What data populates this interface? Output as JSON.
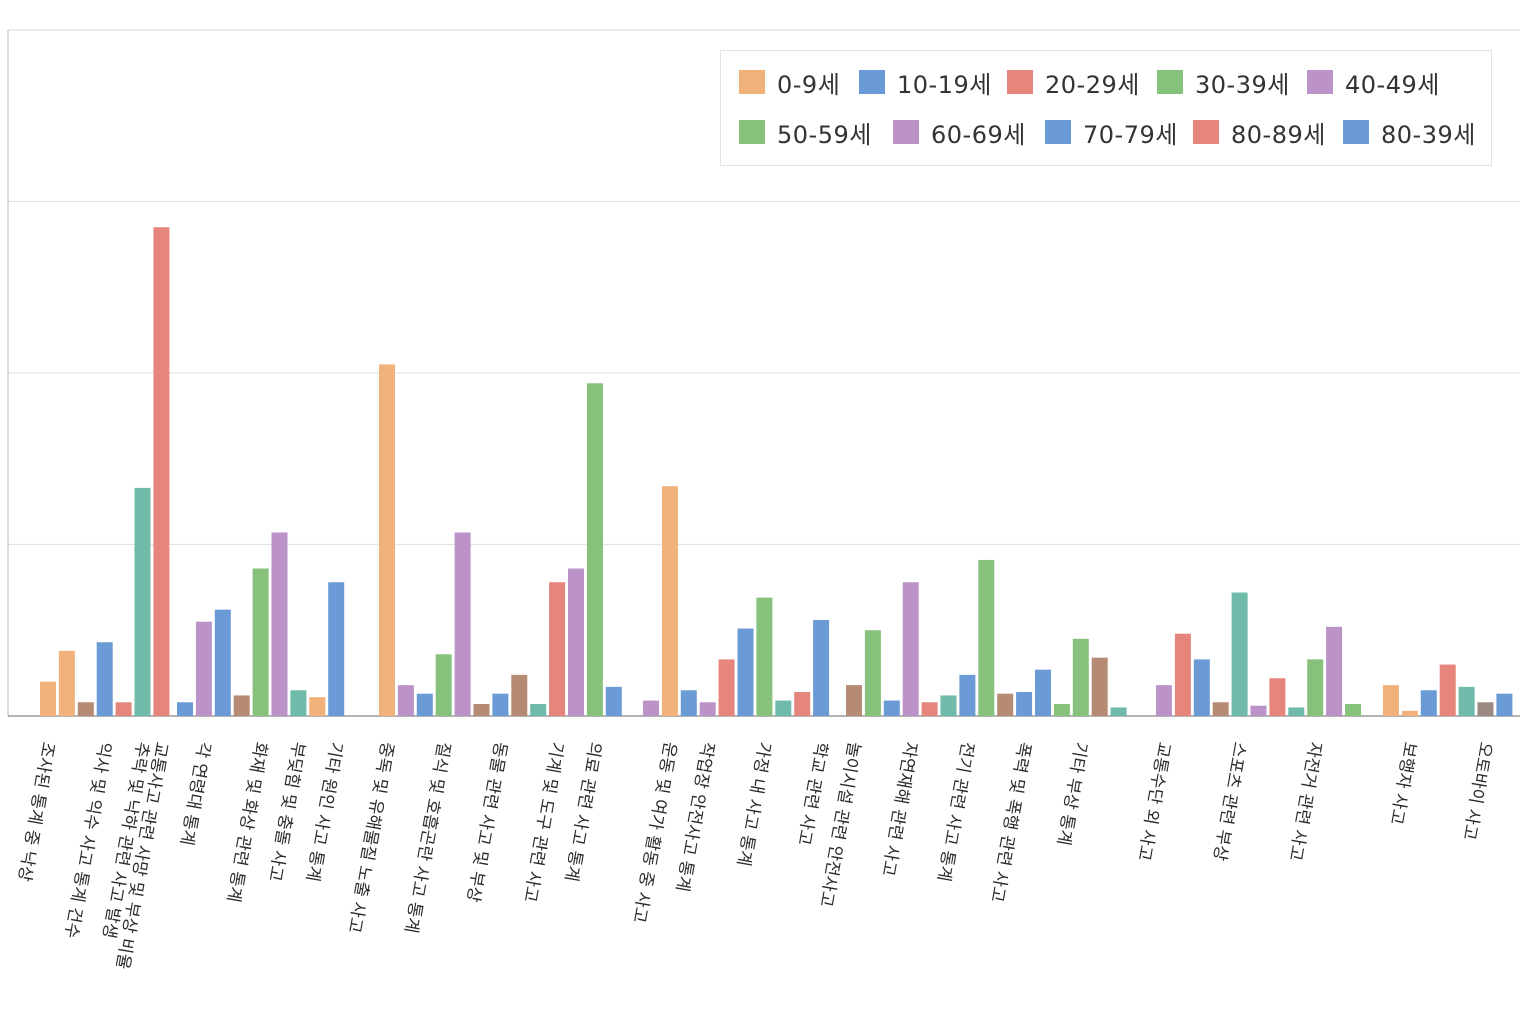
{
  "chart_data": {
    "type": "bar",
    "title": "",
    "xlabel": "",
    "ylabel": "",
    "ylim": [
      0,
      40
    ],
    "grid": true,
    "legend_position": "top-right",
    "legend": [
      {
        "label": "0-9세",
        "color": "#f0b27a"
      },
      {
        "label": "10-19세",
        "color": "#6a9bd6"
      },
      {
        "label": "20-29세",
        "color": "#e5857c"
      },
      {
        "label": "30-39세",
        "color": "#86c27c"
      },
      {
        "label": "40-49세",
        "color": "#bb93c9"
      },
      {
        "label": "50-59세",
        "color": "#86c27c"
      },
      {
        "label": "60-69세",
        "color": "#bb93c9"
      },
      {
        "label": "70-79세",
        "color": "#6a9bd6"
      },
      {
        "label": "80-89세",
        "color": "#e5857c"
      },
      {
        "label": "80-39세",
        "color": "#6a9bd6"
      }
    ],
    "groups": [
      {
        "bars": [
          {
            "label": "조사된 통계 중 낙상",
            "value": 2.0,
            "color": "#f0b27a"
          },
          {
            "label": "",
            "value": 3.8,
            "color": "#f0b27a"
          },
          {
            "label": "",
            "value": 0.8,
            "color": "#b58b74"
          },
          {
            "label": "익사 및 익수 사고 통계 건수",
            "value": 4.3,
            "color": "#6a9bd6"
          },
          {
            "label": "",
            "value": 0.8,
            "color": "#e5857c"
          },
          {
            "label": "추락 및 낙하 관련 사고 발생",
            "value": 13.3,
            "color": "#6fbaa8"
          },
          {
            "label": "교통사고 관련 사망 및 부상 비율",
            "value": 28.5,
            "color": "#e5857c"
          }
        ]
      },
      {
        "bars": [
          {
            "label": "",
            "value": 0.8,
            "color": "#6a9bd6"
          },
          {
            "label": "각 연령대 통계",
            "value": 5.5,
            "color": "#bb93c9"
          },
          {
            "label": "",
            "value": 6.2,
            "color": "#6a9bd6"
          },
          {
            "label": "",
            "value": 1.2,
            "color": "#b58b74"
          },
          {
            "label": "화재 및 화상 관련 통계",
            "value": 8.6,
            "color": "#86c27c"
          },
          {
            "label": "",
            "value": 10.7,
            "color": "#bb93c9"
          },
          {
            "label": "부딪힘 및 충돌 사고",
            "value": 1.5,
            "color": "#6fbaa8"
          },
          {
            "label": "",
            "value": 1.1,
            "color": "#f0b27a"
          },
          {
            "label": "기타 원인 사고 통계",
            "value": 7.8,
            "color": "#6a9bd6"
          }
        ]
      },
      {
        "bars": [
          {
            "label": "중독 및 유해물질 노출 사고",
            "value": 20.5,
            "color": "#f0b27a"
          },
          {
            "label": "",
            "value": 1.8,
            "color": "#bb93c9"
          },
          {
            "label": "",
            "value": 1.3,
            "color": "#6a9bd6"
          },
          {
            "label": "질식 및 호흡곤란 사고 통계",
            "value": 3.6,
            "color": "#86c27c"
          },
          {
            "label": "",
            "value": 10.7,
            "color": "#bb93c9"
          },
          {
            "label": "",
            "value": 0.7,
            "color": "#b58b74"
          },
          {
            "label": "동물 관련 사고 및 부상",
            "value": 1.3,
            "color": "#6a9bd6"
          },
          {
            "label": "",
            "value": 2.4,
            "color": "#b58b74"
          },
          {
            "label": "",
            "value": 0.7,
            "color": "#6fbaa8"
          },
          {
            "label": "기계 및 도구 관련 사고",
            "value": 7.8,
            "color": "#e5857c"
          },
          {
            "label": "",
            "value": 8.6,
            "color": "#bb93c9"
          },
          {
            "label": "의료 관련 사고 통계",
            "value": 19.4,
            "color": "#86c27c"
          },
          {
            "label": "",
            "value": 1.7,
            "color": "#6a9bd6"
          }
        ]
      },
      {
        "bars": [
          {
            "label": "",
            "value": 0.9,
            "color": "#bb93c9"
          },
          {
            "label": "운동 및 여가 활동 중 사고",
            "value": 13.4,
            "color": "#f0b27a"
          },
          {
            "label": "",
            "value": 1.5,
            "color": "#6a9bd6"
          },
          {
            "label": "작업장 안전사고 통계",
            "value": 0.8,
            "color": "#bb93c9"
          },
          {
            "label": "",
            "value": 3.3,
            "color": "#e5857c"
          },
          {
            "label": "",
            "value": 5.1,
            "color": "#6a9bd6"
          },
          {
            "label": "가정 내 사고 통계",
            "value": 6.9,
            "color": "#86c27c"
          },
          {
            "label": "",
            "value": 0.9,
            "color": "#6fbaa8"
          },
          {
            "label": "",
            "value": 1.4,
            "color": "#e5857c"
          },
          {
            "label": "학교 관련 사고",
            "value": 5.6,
            "color": "#6a9bd6"
          }
        ]
      },
      {
        "bars": [
          {
            "label": "놀이시설 관련 안전사고",
            "value": 1.8,
            "color": "#b58b74"
          },
          {
            "label": "",
            "value": 5.0,
            "color": "#86c27c"
          },
          {
            "label": "",
            "value": 0.9,
            "color": "#6a9bd6"
          },
          {
            "label": "자연재해 관련 사고",
            "value": 7.8,
            "color": "#bb93c9"
          },
          {
            "label": "",
            "value": 0.8,
            "color": "#e5857c"
          },
          {
            "label": "",
            "value": 1.2,
            "color": "#6fbaa8"
          },
          {
            "label": "전기 관련 사고 통계",
            "value": 2.4,
            "color": "#6a9bd6"
          },
          {
            "label": "",
            "value": 9.1,
            "color": "#86c27c"
          },
          {
            "label": "",
            "value": 1.3,
            "color": "#b58b74"
          },
          {
            "label": "폭력 및 폭행 관련 사고",
            "value": 1.4,
            "color": "#6a9bd6"
          },
          {
            "label": "",
            "value": 2.7,
            "color": "#6a9bd6"
          },
          {
            "label": "",
            "value": 0.7,
            "color": "#86c27c"
          },
          {
            "label": "기타 부상 통계",
            "value": 4.5,
            "color": "#86c27c"
          },
          {
            "label": "",
            "value": 3.4,
            "color": "#b58b74"
          },
          {
            "label": "",
            "value": 0.5,
            "color": "#6fbaa8"
          }
        ]
      },
      {
        "bars": [
          {
            "label": "교통수단 외 사고",
            "value": 1.8,
            "color": "#bb93c9"
          },
          {
            "label": "",
            "value": 4.8,
            "color": "#e5857c"
          },
          {
            "label": "",
            "value": 3.3,
            "color": "#6a9bd6"
          },
          {
            "label": "",
            "value": 0.8,
            "color": "#b58b74"
          },
          {
            "label": "스포츠 관련 부상",
            "value": 7.2,
            "color": "#6fbaa8"
          },
          {
            "label": "",
            "value": 0.6,
            "color": "#bb93c9"
          },
          {
            "label": "",
            "value": 2.2,
            "color": "#e5857c"
          },
          {
            "label": "",
            "value": 0.5,
            "color": "#6fbaa8"
          },
          {
            "label": "자전거 관련 사고",
            "value": 3.3,
            "color": "#86c27c"
          },
          {
            "label": "",
            "value": 5.2,
            "color": "#bb93c9"
          },
          {
            "label": "",
            "value": 0.7,
            "color": "#86c27c"
          }
        ]
      },
      {
        "bars": [
          {
            "label": "",
            "value": 1.8,
            "color": "#f0b27a"
          },
          {
            "label": "보행자 사고",
            "value": 0.3,
            "color": "#f0b27a"
          },
          {
            "label": "",
            "value": 1.5,
            "color": "#6a9bd6"
          },
          {
            "label": "",
            "value": 3.0,
            "color": "#e5857c"
          },
          {
            "label": "",
            "value": 1.7,
            "color": "#6fbaa8"
          },
          {
            "label": "오토바이 사고",
            "value": 0.8,
            "color": "#9a8a82"
          },
          {
            "label": "",
            "value": 1.3,
            "color": "#6a9bd6"
          }
        ]
      }
    ]
  }
}
